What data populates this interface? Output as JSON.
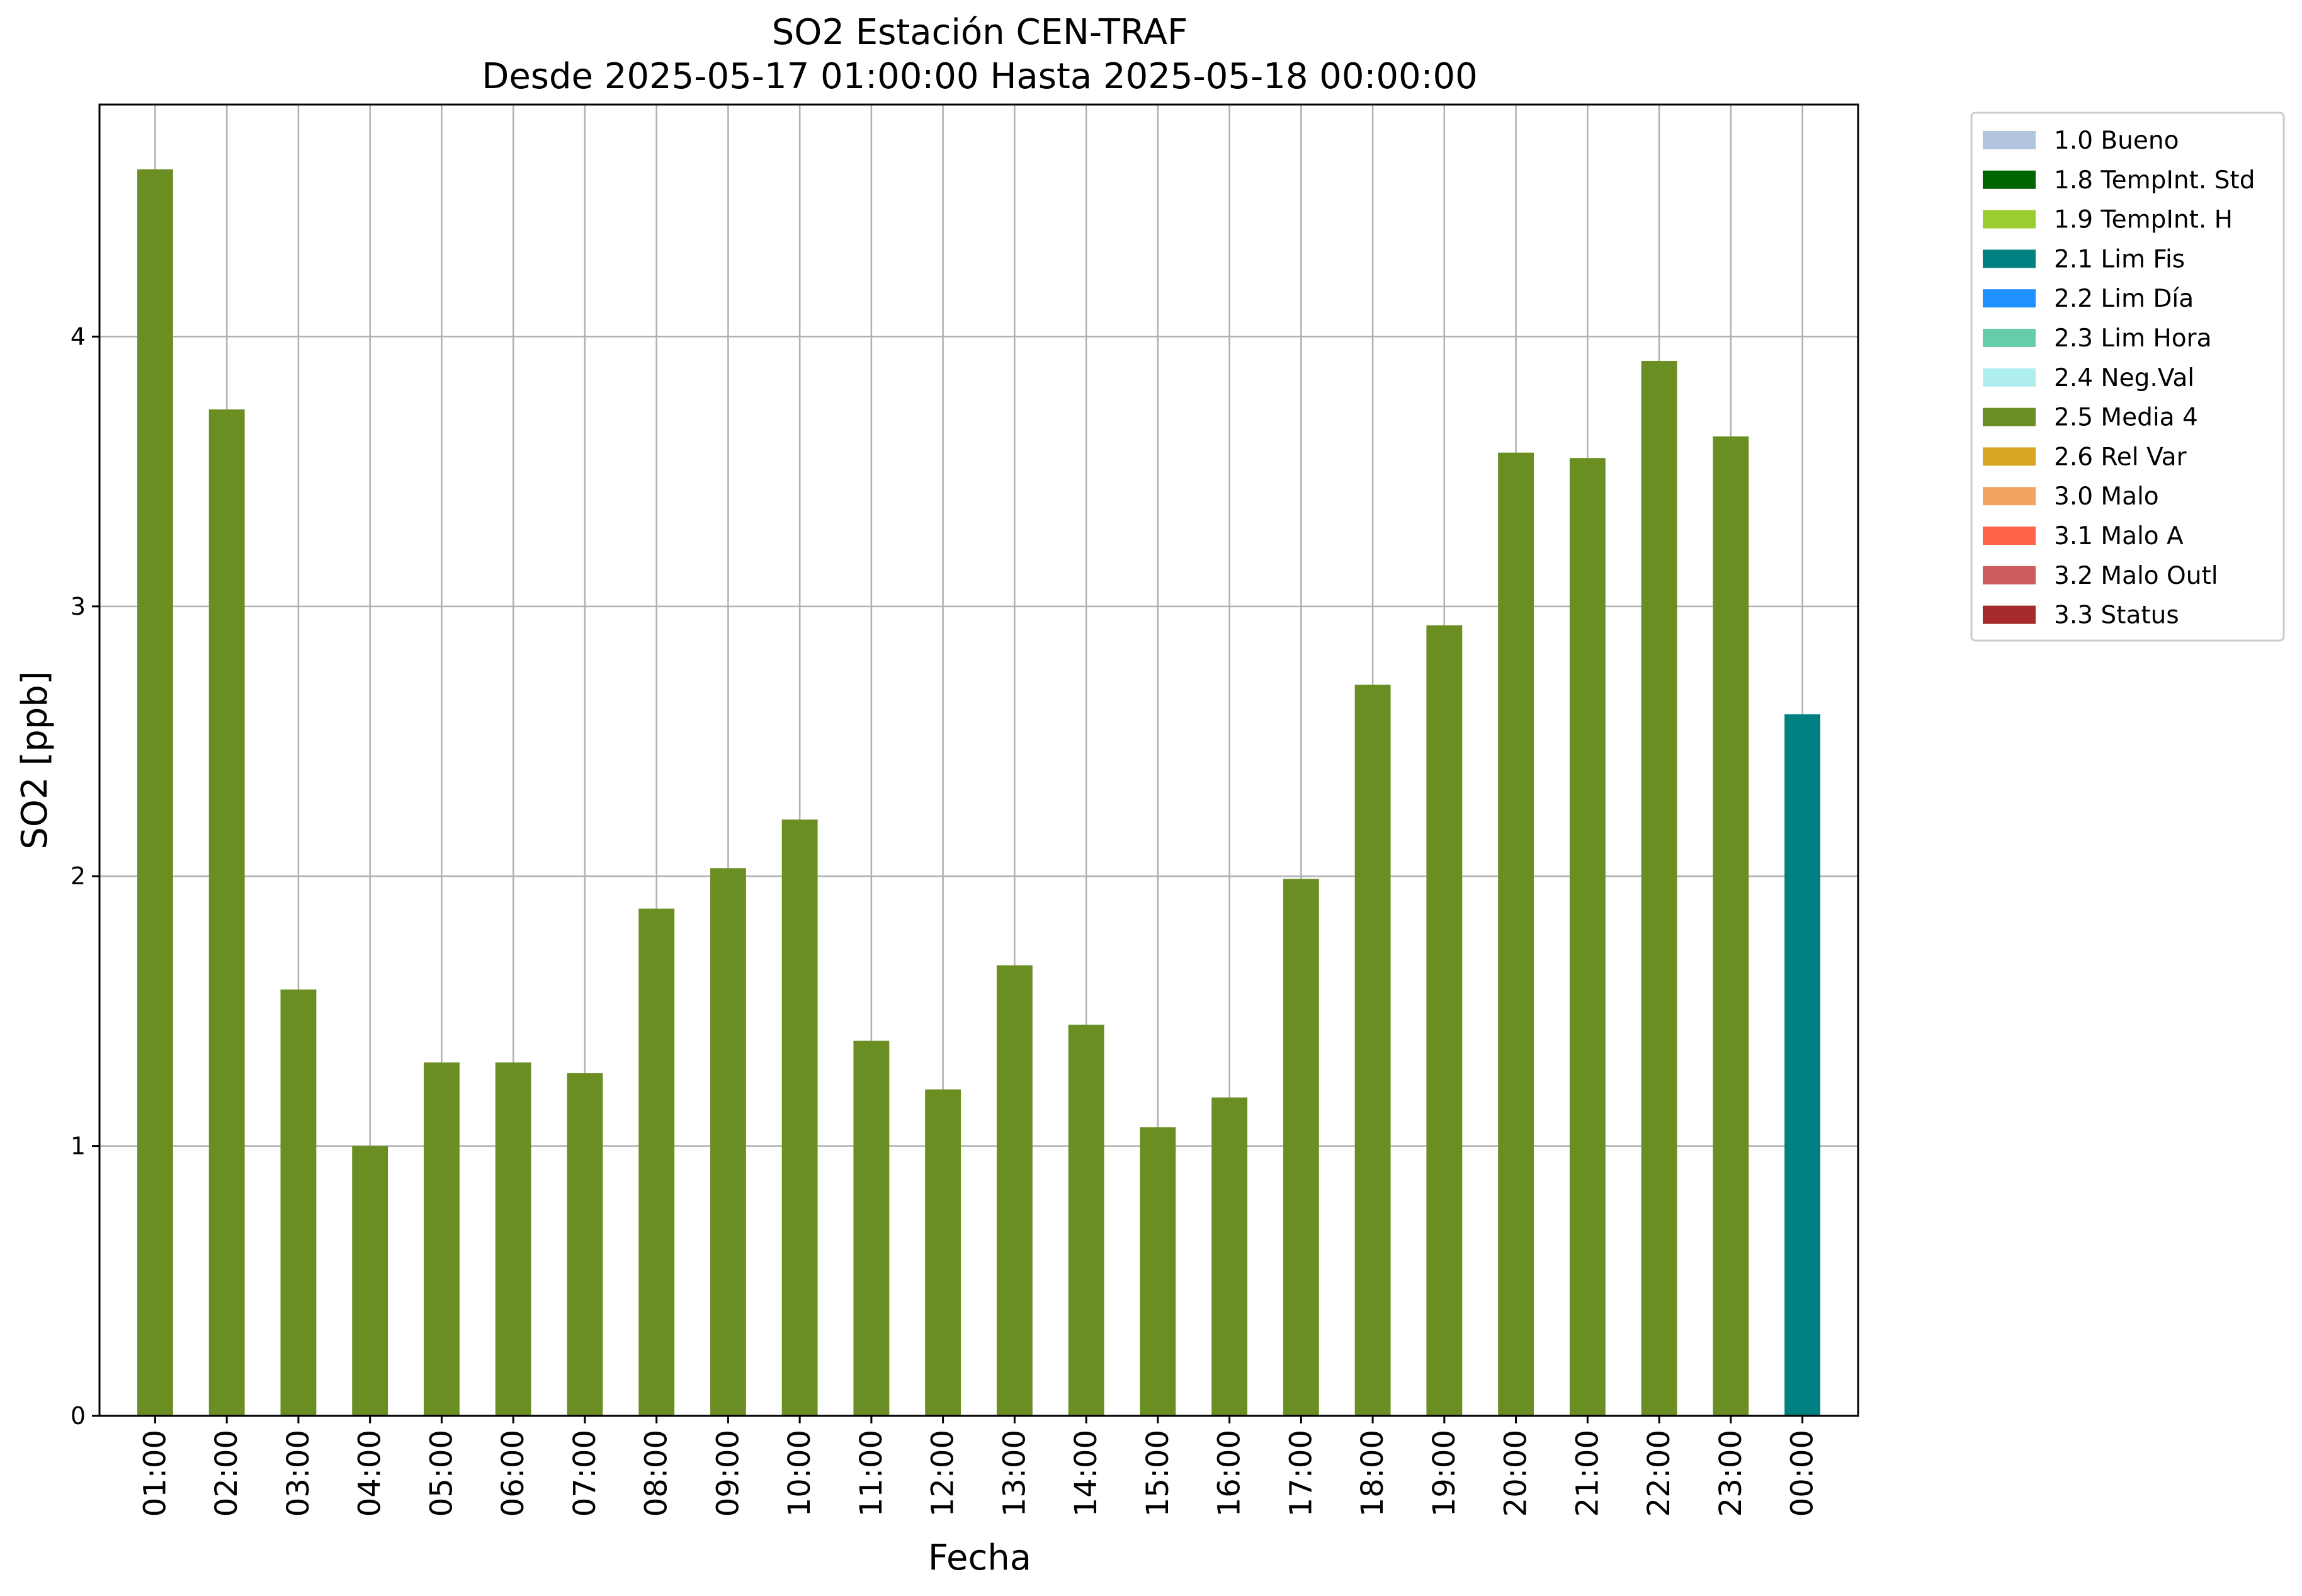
{
  "chart_data": {
    "type": "bar",
    "title": "SO2 Estación CEN-TRAF",
    "subtitle": "Desde 2025-05-17 01:00:00 Hasta 2025-05-18 00:00:00",
    "xlabel": "Fecha",
    "ylabel": "SO2 [ppb]",
    "ylim": [
      0,
      4.86
    ],
    "yticks": [
      "0",
      "1",
      "2",
      "3",
      "4"
    ],
    "grid": true,
    "legend_position": "outside-top-right",
    "categories": [
      "01:00",
      "02:00",
      "03:00",
      "04:00",
      "05:00",
      "06:00",
      "07:00",
      "08:00",
      "09:00",
      "10:00",
      "11:00",
      "12:00",
      "13:00",
      "14:00",
      "15:00",
      "16:00",
      "17:00",
      "18:00",
      "19:00",
      "20:00",
      "21:00",
      "22:00",
      "23:00",
      "00:00"
    ],
    "values": [
      4.62,
      3.73,
      1.58,
      1.0,
      1.31,
      1.31,
      1.27,
      1.88,
      2.03,
      2.21,
      1.39,
      1.21,
      1.67,
      1.45,
      1.07,
      1.18,
      1.99,
      2.71,
      2.93,
      3.57,
      3.55,
      3.91,
      3.63,
      2.6
    ],
    "bar_flags": [
      "2.5 Media 4",
      "2.5 Media 4",
      "2.5 Media 4",
      "2.5 Media 4",
      "2.5 Media 4",
      "2.5 Media 4",
      "2.5 Media 4",
      "2.5 Media 4",
      "2.5 Media 4",
      "2.5 Media 4",
      "2.5 Media 4",
      "2.5 Media 4",
      "2.5 Media 4",
      "2.5 Media 4",
      "2.5 Media 4",
      "2.5 Media 4",
      "2.5 Media 4",
      "2.5 Media 4",
      "2.5 Media 4",
      "2.5 Media 4",
      "2.5 Media 4",
      "2.5 Media 4",
      "2.5 Media 4",
      "2.1 Lim Fis"
    ],
    "legend": [
      {
        "label": "1.0 Bueno",
        "color": "#b0c4de"
      },
      {
        "label": "1.8 TempInt. Std",
        "color": "#006400"
      },
      {
        "label": "1.9 TempInt. H",
        "color": "#9acd32"
      },
      {
        "label": "2.1 Lim Fis",
        "color": "#008080"
      },
      {
        "label": "2.2 Lim Día",
        "color": "#1e90ff"
      },
      {
        "label": "2.3 Lim Hora",
        "color": "#66cdaa"
      },
      {
        "label": "2.4 Neg.Val",
        "color": "#afeeee"
      },
      {
        "label": "2.5 Media 4",
        "color": "#6b8e23"
      },
      {
        "label": "2.6 Rel Var",
        "color": "#daa520"
      },
      {
        "label": "3.0 Malo",
        "color": "#f4a460"
      },
      {
        "label": "3.1 Malo A",
        "color": "#ff6347"
      },
      {
        "label": "3.2 Malo Outl",
        "color": "#cd5c5c"
      },
      {
        "label": "3.3 Status",
        "color": "#a52a2a"
      }
    ]
  }
}
